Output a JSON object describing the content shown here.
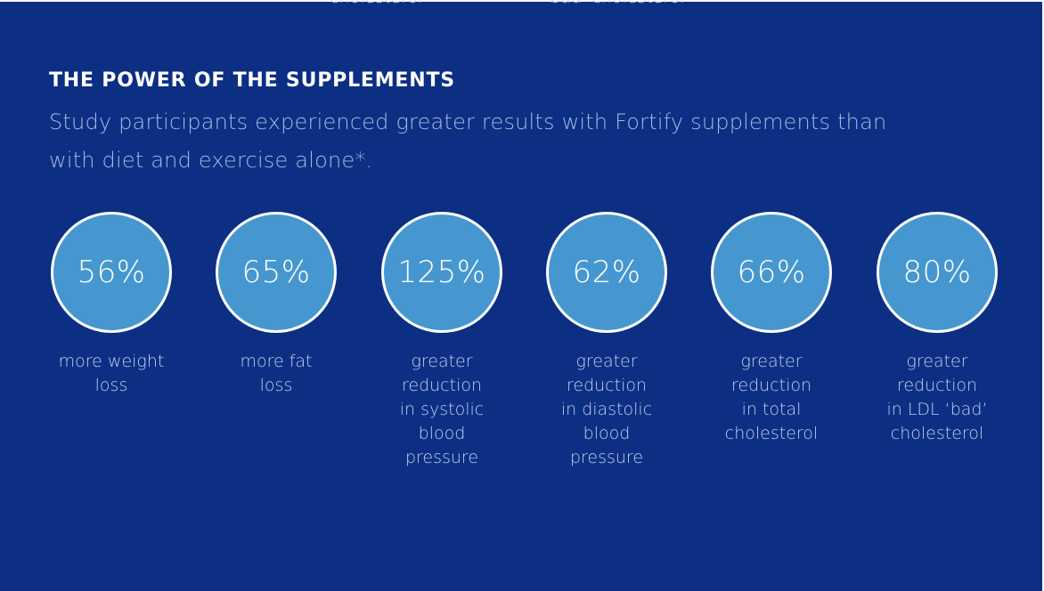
{
  "header": {
    "title": "THE POWER OF THE SUPPLEMENTS",
    "subtitle_line1": "Study participants experienced greater results with Fortify supplements than",
    "subtitle_line2": "with diet and exercise alone*."
  },
  "top_cutoff": {
    "left_text": "cholesterol",
    "right_text": "'bad' cholesterol"
  },
  "stats": [
    {
      "value": "56%",
      "label": "more weight\nloss"
    },
    {
      "value": "65%",
      "label": "more fat\nloss"
    },
    {
      "value": "125%",
      "label": "greater\nreduction\nin systolic\nblood\npressure"
    },
    {
      "value": "62%",
      "label": "greater\nreduction\nin diastolic\nblood\npressure"
    },
    {
      "value": "66%",
      "label": "greater\nreduction\nin total\ncholesterol"
    },
    {
      "value": "80%",
      "label": "greater\nreduction\nin LDL ‘bad’\ncholesterol"
    }
  ],
  "colors": {
    "background": "#0c2f84",
    "circle_fill": "#4697cf",
    "circle_border": "#ffffff",
    "title": "#ffffff",
    "subtitle": "#a6b8de",
    "label": "#c3cfec"
  }
}
